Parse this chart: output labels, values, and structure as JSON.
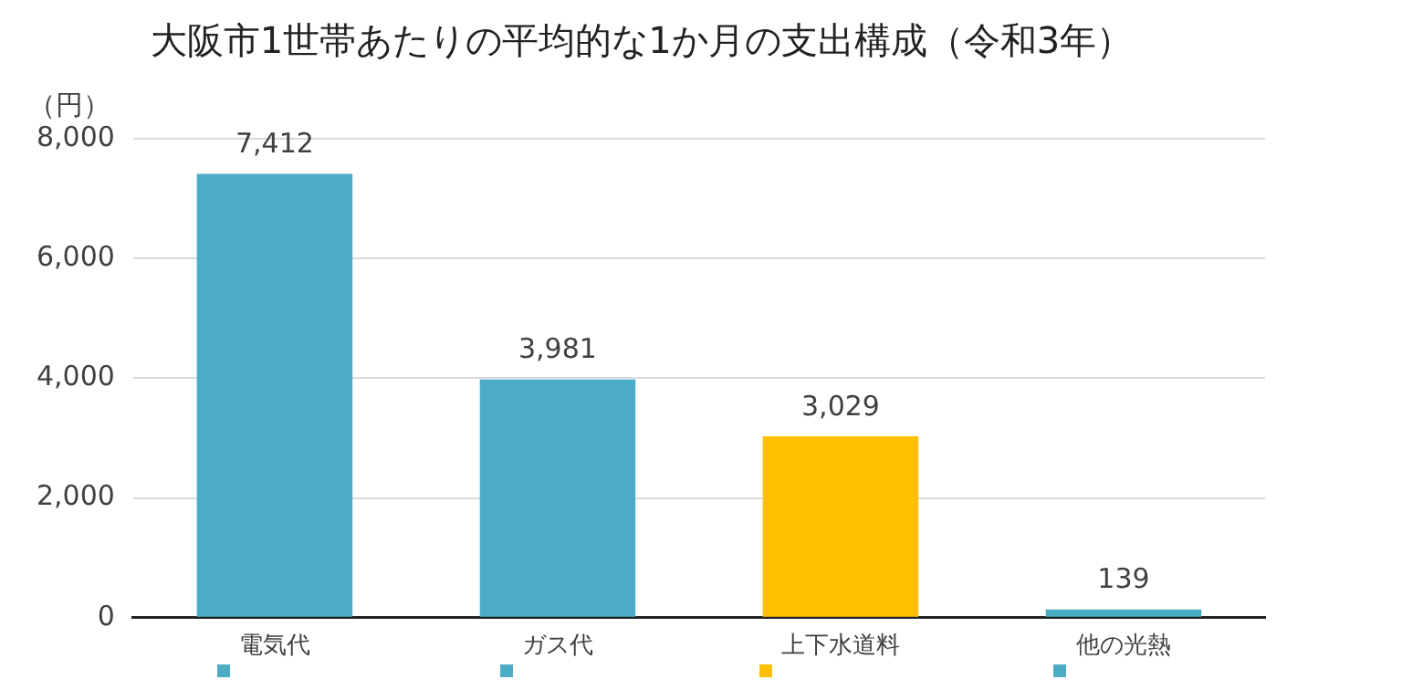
{
  "chart_data": {
    "type": "bar",
    "title": "大阪市1世帯あたりの平均的な1か月の支出構成（令和3年）",
    "ylabel": "（円）",
    "categories": [
      "電気代",
      "ガス代",
      "上下水道料",
      "他の光熱"
    ],
    "values": [
      7412,
      3981,
      3029,
      139
    ],
    "colors": [
      "#4bacc6",
      "#4bacc6",
      "#ffc000",
      "#4bacc6"
    ],
    "value_labels": [
      "7,412",
      "3,981",
      "3,029",
      "139"
    ],
    "ylim": [
      0,
      8000
    ],
    "yticks": [
      {
        "value": 0,
        "label": "0"
      },
      {
        "value": 2000,
        "label": "2,000"
      },
      {
        "value": 4000,
        "label": "4,000"
      },
      {
        "value": 6000,
        "label": "6,000"
      },
      {
        "value": 8000,
        "label": "8,000"
      }
    ],
    "grid": "y",
    "legend": false
  }
}
